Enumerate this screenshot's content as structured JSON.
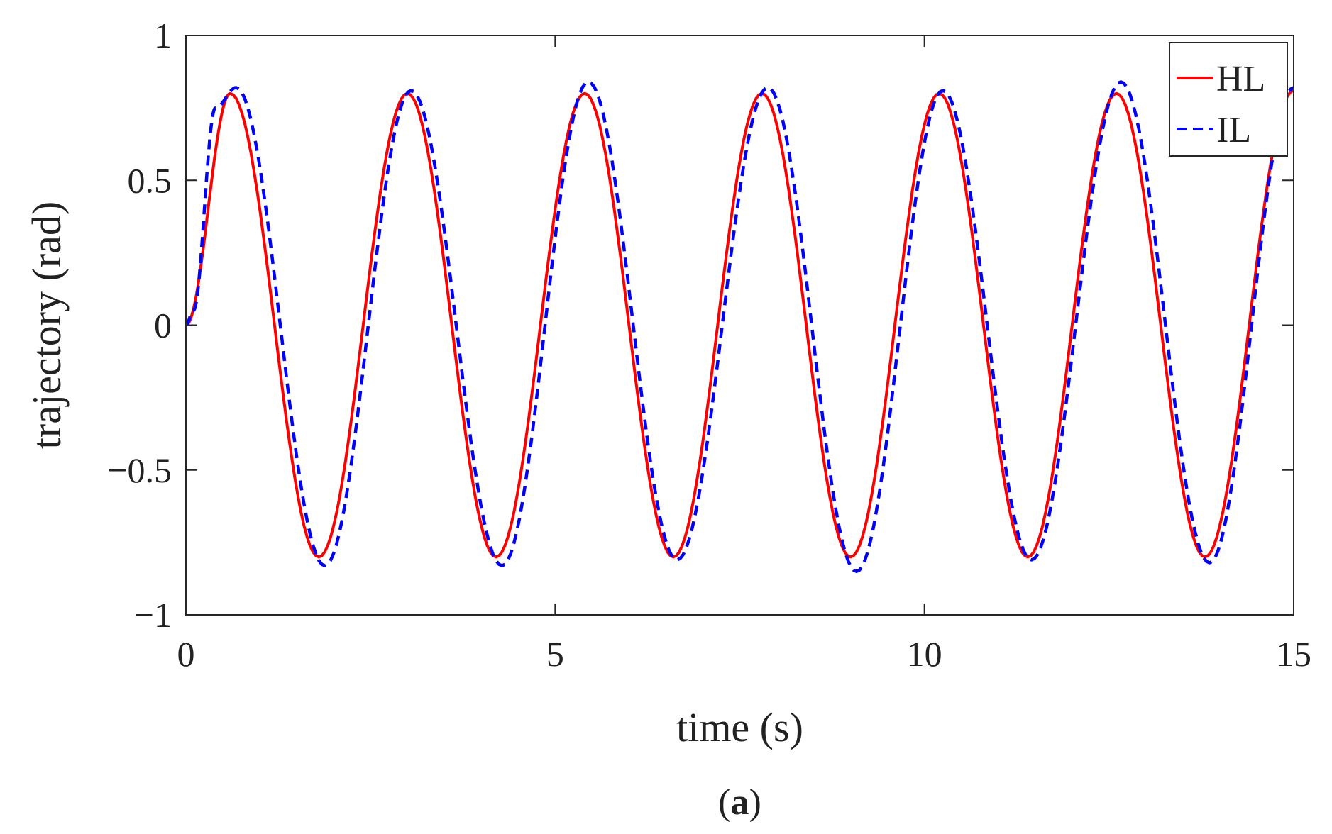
{
  "chart_data": {
    "type": "line",
    "title": "",
    "xlabel": "time (s)",
    "ylabel": "trajectory (rad)",
    "xlim": [
      0,
      15
    ],
    "ylim": [
      -1,
      1
    ],
    "xticks": [
      0,
      5,
      10,
      15
    ],
    "xtick_labels": [
      "0",
      "5",
      "10",
      "15"
    ],
    "yticks": [
      -1,
      -0.5,
      0,
      0.5,
      1
    ],
    "ytick_labels": [
      "−1",
      "−0.5",
      "0",
      "0.5",
      "1"
    ],
    "grid": false,
    "legend_position": "top-right",
    "caption": {
      "open": "(",
      "letter": "a",
      "close": ")"
    },
    "series": [
      {
        "name": "HL",
        "color": "#ff0000",
        "style": "solid",
        "x": [
          0,
          0.6,
          1.8,
          3.0,
          4.2,
          5.4,
          6.6,
          7.8,
          9.0,
          10.2,
          11.4,
          12.6,
          13.8,
          15.0
        ],
        "y": [
          0,
          0.8,
          -0.8,
          0.8,
          -0.8,
          0.8,
          -0.8,
          0.8,
          -0.8,
          0.8,
          -0.8,
          0.8,
          -0.8,
          0.81
        ]
      },
      {
        "name": "IL",
        "color": "#0000ff",
        "style": "dashed",
        "x": [
          0,
          0.1,
          0.4,
          0.68,
          1.88,
          3.05,
          4.28,
          5.45,
          6.65,
          7.88,
          9.08,
          10.25,
          11.45,
          12.66,
          13.86,
          15.0
        ],
        "y": [
          0,
          0.05,
          0.75,
          0.82,
          -0.83,
          0.81,
          -0.83,
          0.84,
          -0.81,
          0.82,
          -0.85,
          0.81,
          -0.81,
          0.84,
          -0.82,
          0.82
        ]
      }
    ]
  }
}
